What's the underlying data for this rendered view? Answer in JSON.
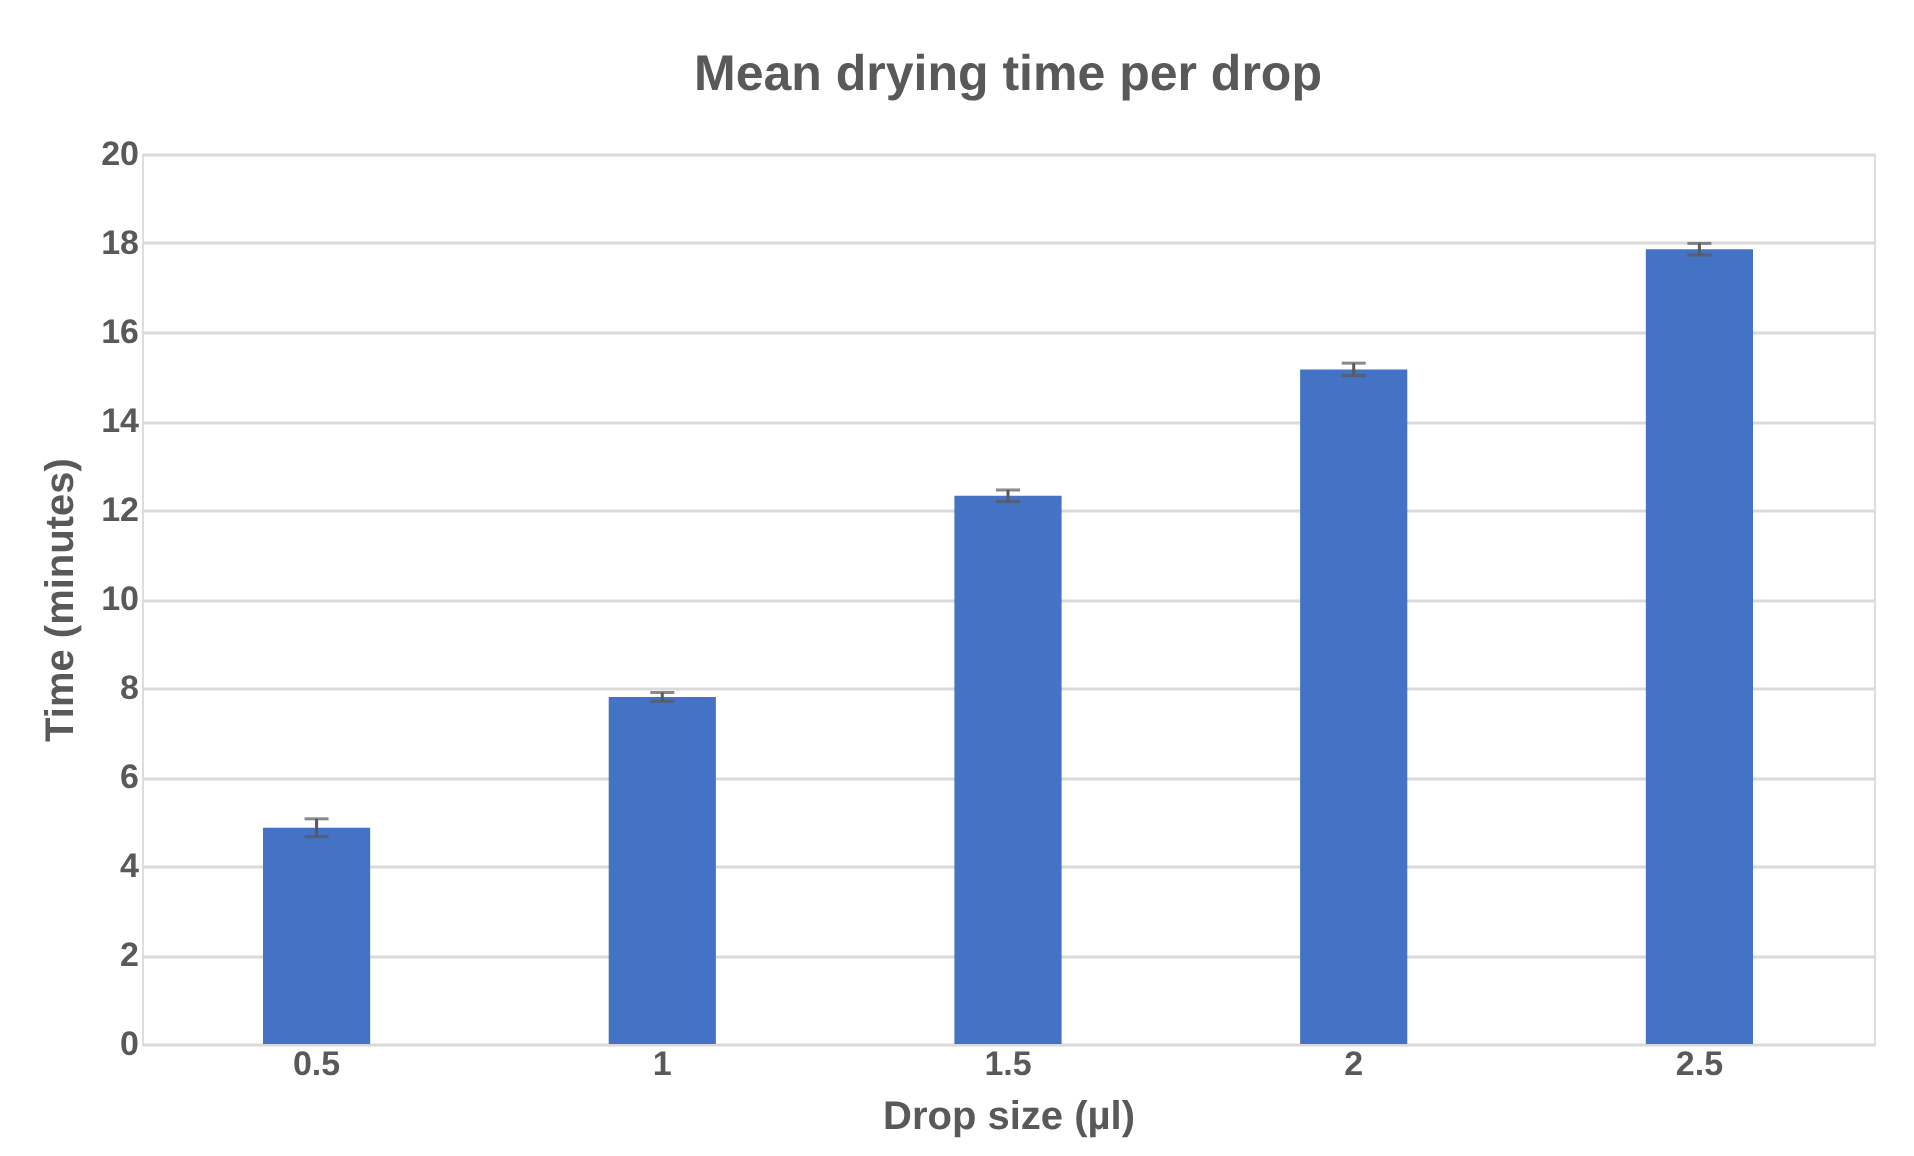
{
  "chart_data": {
    "type": "bar",
    "title": "Mean drying time per drop",
    "xlabel": "Drop size (µl)",
    "ylabel": "Time (minutes)",
    "categories": [
      "0.5",
      "1",
      "1.5",
      "2",
      "2.5"
    ],
    "values": [
      4.86,
      7.8,
      12.32,
      15.16,
      17.86
    ],
    "errors": [
      0.2,
      0.1,
      0.13,
      0.14,
      0.13
    ],
    "color": "#4472c4",
    "ylim": [
      0,
      20
    ],
    "yticks": [
      0,
      2,
      4,
      6,
      8,
      10,
      12,
      14,
      16,
      18,
      20
    ],
    "grid": "y"
  }
}
